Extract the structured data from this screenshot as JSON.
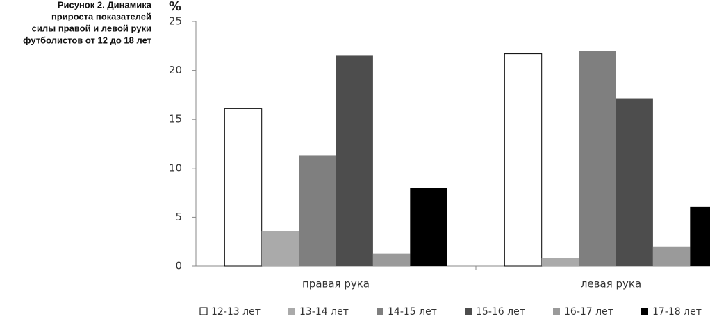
{
  "chart_data": {
    "type": "bar",
    "title": [
      "Рисунок 2. Динамика",
      "прироста показателей",
      "силы правой и левой руки",
      "футболистов от 12 до 18 лет"
    ],
    "ylabel": "%",
    "categories": [
      "правая рука",
      "левая рука"
    ],
    "series": [
      {
        "name": "12-13 лет",
        "color": "#ffffff",
        "values": [
          16.1,
          21.7
        ]
      },
      {
        "name": "13-14 лет",
        "color": "#aaaaaa",
        "values": [
          3.6,
          0.8
        ]
      },
      {
        "name": "14-15 лет",
        "color": "#7f7f7f",
        "values": [
          11.3,
          22.0
        ]
      },
      {
        "name": "15-16 лет",
        "color": "#4d4d4d",
        "values": [
          21.5,
          17.1
        ]
      },
      {
        "name": "16-17 лет",
        "color": "#9a9a9a",
        "values": [
          1.3,
          2.0
        ]
      },
      {
        "name": "17-18 лет",
        "color": "#000000",
        "values": [
          8.0,
          6.1
        ]
      }
    ],
    "ylim": [
      0,
      25
    ],
    "yticks": [
      0,
      5,
      10,
      15,
      20,
      25
    ],
    "grid": false,
    "legend": "bottom"
  }
}
